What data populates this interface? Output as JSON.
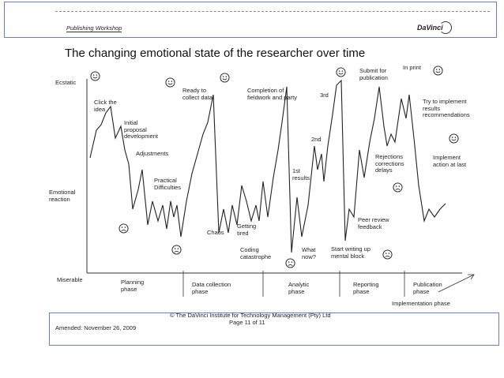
{
  "header": {
    "workshop": "Publishing Workshop",
    "logo": "DaVinci",
    "title": "The changing emotional state of the researcher over time"
  },
  "axis": {
    "top": "Ecstatic",
    "middle": [
      "Emotional",
      "reaction"
    ],
    "bottom": "Miserable"
  },
  "phases": [
    {
      "id": "planning",
      "lines": [
        "Planning",
        "phase"
      ]
    },
    {
      "id": "data-collection",
      "lines": [
        "Data collection",
        "phase"
      ]
    },
    {
      "id": "analytic",
      "lines": [
        "Analytic",
        "phase"
      ]
    },
    {
      "id": "reporting",
      "lines": [
        "Reporting",
        "phase"
      ]
    },
    {
      "id": "publication",
      "lines": [
        "Publication",
        "phase"
      ]
    },
    {
      "id": "implementation",
      "lines": [
        "Implementation phase"
      ]
    }
  ],
  "annotations": [
    {
      "id": "click-idea",
      "lines": [
        "Click the",
        "idea"
      ]
    },
    {
      "id": "initial-proposal",
      "lines": [
        "Initial",
        "proposal",
        "development"
      ]
    },
    {
      "id": "adjustments",
      "lines": [
        "Adjustments"
      ]
    },
    {
      "id": "practical-difficulties",
      "lines": [
        "Practical",
        "Difficulties"
      ]
    },
    {
      "id": "ready-collect",
      "lines": [
        "Ready to",
        "collect data"
      ]
    },
    {
      "id": "chaos",
      "lines": [
        "Chaos"
      ]
    },
    {
      "id": "getting-tired",
      "lines": [
        "Getting",
        "tired"
      ]
    },
    {
      "id": "completion-fieldwork",
      "lines": [
        "Completion of",
        "fieldwork and party"
      ]
    },
    {
      "id": "coding-catastrophe",
      "lines": [
        "Coding",
        "catastrophe"
      ]
    },
    {
      "id": "first-results",
      "lines": [
        "1st",
        "results"
      ]
    },
    {
      "id": "what-now",
      "lines": [
        "What",
        "now?"
      ]
    },
    {
      "id": "second",
      "lines": [
        "2nd"
      ]
    },
    {
      "id": "third",
      "lines": [
        "3rd"
      ]
    },
    {
      "id": "submit-publication",
      "lines": [
        "Submit for",
        "publication"
      ]
    },
    {
      "id": "in-print",
      "lines": [
        "In print"
      ]
    },
    {
      "id": "start-writing",
      "lines": [
        "Start writing up",
        "mental block"
      ]
    },
    {
      "id": "rejections",
      "lines": [
        "Rejections",
        "corrections",
        "delays"
      ]
    },
    {
      "id": "peer-review",
      "lines": [
        "Peer review",
        "feedback"
      ]
    },
    {
      "id": "try-implement",
      "lines": [
        "Try to implement",
        "results",
        "recommendations"
      ]
    },
    {
      "id": "implement-action",
      "lines": [
        "Implement",
        "action at last"
      ]
    }
  ],
  "faces": [
    {
      "mood": "happy"
    },
    {
      "mood": "happy"
    },
    {
      "mood": "happy"
    },
    {
      "mood": "happy"
    },
    {
      "mood": "happy"
    },
    {
      "mood": "happy"
    },
    {
      "mood": "sad"
    },
    {
      "mood": "sad"
    },
    {
      "mood": "sad"
    },
    {
      "mood": "sad"
    },
    {
      "mood": "sad"
    }
  ],
  "footer": {
    "copyright": "© The DaVinci Institute for Technology Management (Pty) Ltd",
    "page": "Page 11 of 11",
    "amended": "Amended: November 26, 2009"
  }
}
